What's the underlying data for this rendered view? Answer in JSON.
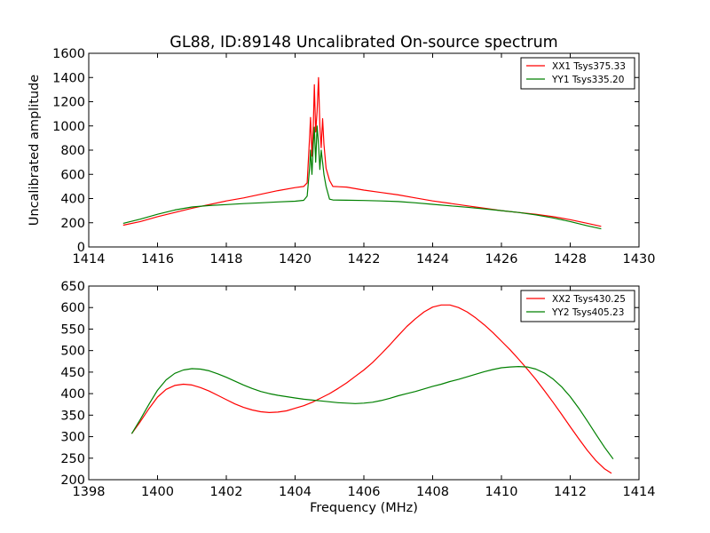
{
  "page": {
    "background": "#ffffff"
  },
  "colors": {
    "red": "#ff0000",
    "green": "#008000",
    "axis": "#000000"
  },
  "chart_data": [
    {
      "type": "line",
      "title": "GL88, ID:89148 Uncalibrated On-source spectrum",
      "xlabel": "",
      "ylabel": "Uncalibrated amplitude",
      "xlim": [
        1414,
        1430
      ],
      "ylim": [
        0,
        1600
      ],
      "xticks": [
        1414,
        1416,
        1418,
        1420,
        1422,
        1424,
        1426,
        1428,
        1430
      ],
      "yticks": [
        0,
        200,
        400,
        600,
        800,
        1000,
        1200,
        1400,
        1600
      ],
      "grid": false,
      "legend_position": "top-right",
      "series": [
        {
          "name": "XX1 Tsys375.33",
          "color": "#ff0000",
          "points": [
            [
              1415.0,
              180
            ],
            [
              1415.5,
              210
            ],
            [
              1416.0,
              250
            ],
            [
              1416.5,
              285
            ],
            [
              1417.0,
              320
            ],
            [
              1417.5,
              350
            ],
            [
              1418.0,
              380
            ],
            [
              1418.5,
              405
            ],
            [
              1419.0,
              435
            ],
            [
              1419.5,
              465
            ],
            [
              1420.0,
              490
            ],
            [
              1420.25,
              500
            ],
            [
              1420.35,
              530
            ],
            [
              1420.42,
              900
            ],
            [
              1420.45,
              1070
            ],
            [
              1420.49,
              750
            ],
            [
              1420.53,
              1000
            ],
            [
              1420.56,
              1340
            ],
            [
              1420.6,
              950
            ],
            [
              1420.64,
              1120
            ],
            [
              1420.68,
              1400
            ],
            [
              1420.72,
              1000
            ],
            [
              1420.76,
              820
            ],
            [
              1420.8,
              1060
            ],
            [
              1420.84,
              850
            ],
            [
              1420.9,
              650
            ],
            [
              1421.0,
              550
            ],
            [
              1421.1,
              500
            ],
            [
              1421.5,
              495
            ],
            [
              1422.0,
              470
            ],
            [
              1422.5,
              450
            ],
            [
              1423.0,
              430
            ],
            [
              1423.5,
              405
            ],
            [
              1424.0,
              380
            ],
            [
              1424.5,
              360
            ],
            [
              1425.0,
              340
            ],
            [
              1425.5,
              320
            ],
            [
              1426.0,
              300
            ],
            [
              1426.5,
              285
            ],
            [
              1427.0,
              270
            ],
            [
              1427.5,
              250
            ],
            [
              1428.0,
              225
            ],
            [
              1428.5,
              195
            ],
            [
              1428.9,
              170
            ]
          ]
        },
        {
          "name": "YY1 Tsys335.20",
          "color": "#008000",
          "points": [
            [
              1415.0,
              195
            ],
            [
              1415.5,
              230
            ],
            [
              1416.0,
              270
            ],
            [
              1416.5,
              305
            ],
            [
              1417.0,
              330
            ],
            [
              1417.5,
              342
            ],
            [
              1418.0,
              350
            ],
            [
              1418.5,
              358
            ],
            [
              1419.0,
              365
            ],
            [
              1419.5,
              372
            ],
            [
              1420.0,
              378
            ],
            [
              1420.25,
              385
            ],
            [
              1420.35,
              420
            ],
            [
              1420.42,
              650
            ],
            [
              1420.45,
              800
            ],
            [
              1420.49,
              600
            ],
            [
              1420.53,
              850
            ],
            [
              1420.56,
              990
            ],
            [
              1420.6,
              700
            ],
            [
              1420.64,
              1000
            ],
            [
              1420.68,
              850
            ],
            [
              1420.72,
              640
            ],
            [
              1420.76,
              800
            ],
            [
              1420.8,
              700
            ],
            [
              1420.84,
              600
            ],
            [
              1420.9,
              500
            ],
            [
              1421.0,
              395
            ],
            [
              1421.1,
              388
            ],
            [
              1421.5,
              386
            ],
            [
              1422.0,
              384
            ],
            [
              1422.5,
              380
            ],
            [
              1423.0,
              375
            ],
            [
              1423.5,
              365
            ],
            [
              1424.0,
              352
            ],
            [
              1424.5,
              340
            ],
            [
              1425.0,
              328
            ],
            [
              1425.5,
              315
            ],
            [
              1426.0,
              300
            ],
            [
              1426.5,
              285
            ],
            [
              1427.0,
              265
            ],
            [
              1427.5,
              240
            ],
            [
              1428.0,
              210
            ],
            [
              1428.5,
              175
            ],
            [
              1428.9,
              150
            ]
          ]
        }
      ]
    },
    {
      "type": "line",
      "title": "",
      "xlabel": "Frequency (MHz)",
      "ylabel": "",
      "xlim": [
        1398,
        1414
      ],
      "ylim": [
        200,
        650
      ],
      "xticks": [
        1398,
        1400,
        1402,
        1404,
        1406,
        1408,
        1410,
        1412,
        1414
      ],
      "yticks": [
        200,
        250,
        300,
        350,
        400,
        450,
        500,
        550,
        600,
        650
      ],
      "grid": false,
      "legend_position": "top-right",
      "series": [
        {
          "name": "XX2 Tsys430.25",
          "color": "#ff0000",
          "points": [
            [
              1399.25,
              307
            ],
            [
              1399.5,
              335
            ],
            [
              1399.75,
              365
            ],
            [
              1400.0,
              392
            ],
            [
              1400.25,
              410
            ],
            [
              1400.5,
              419
            ],
            [
              1400.75,
              422
            ],
            [
              1401.0,
              420
            ],
            [
              1401.25,
              414
            ],
            [
              1401.5,
              406
            ],
            [
              1401.75,
              396
            ],
            [
              1402.0,
              386
            ],
            [
              1402.25,
              376
            ],
            [
              1402.5,
              368
            ],
            [
              1402.75,
              362
            ],
            [
              1403.0,
              358
            ],
            [
              1403.25,
              356
            ],
            [
              1403.5,
              357
            ],
            [
              1403.75,
              360
            ],
            [
              1404.0,
              366
            ],
            [
              1404.25,
              372
            ],
            [
              1404.5,
              380
            ],
            [
              1404.75,
              390
            ],
            [
              1405.0,
              400
            ],
            [
              1405.25,
              412
            ],
            [
              1405.5,
              425
            ],
            [
              1405.75,
              440
            ],
            [
              1406.0,
              455
            ],
            [
              1406.25,
              472
            ],
            [
              1406.5,
              492
            ],
            [
              1406.75,
              513
            ],
            [
              1407.0,
              535
            ],
            [
              1407.25,
              556
            ],
            [
              1407.5,
              574
            ],
            [
              1407.75,
              590
            ],
            [
              1408.0,
              601
            ],
            [
              1408.25,
              606
            ],
            [
              1408.5,
              606
            ],
            [
              1408.75,
              600
            ],
            [
              1409.0,
              590
            ],
            [
              1409.25,
              576
            ],
            [
              1409.5,
              560
            ],
            [
              1409.75,
              542
            ],
            [
              1410.0,
              522
            ],
            [
              1410.25,
              502
            ],
            [
              1410.5,
              480
            ],
            [
              1410.75,
              457
            ],
            [
              1411.0,
              433
            ],
            [
              1411.25,
              407
            ],
            [
              1411.5,
              380
            ],
            [
              1411.75,
              352
            ],
            [
              1412.0,
              323
            ],
            [
              1412.25,
              295
            ],
            [
              1412.5,
              268
            ],
            [
              1412.75,
              244
            ],
            [
              1413.0,
              225
            ],
            [
              1413.2,
              215
            ]
          ]
        },
        {
          "name": "YY2 Tsys405.23",
          "color": "#008000",
          "points": [
            [
              1399.25,
              307
            ],
            [
              1399.5,
              340
            ],
            [
              1399.75,
              375
            ],
            [
              1400.0,
              408
            ],
            [
              1400.25,
              432
            ],
            [
              1400.5,
              447
            ],
            [
              1400.75,
              455
            ],
            [
              1401.0,
              458
            ],
            [
              1401.25,
              457
            ],
            [
              1401.5,
              453
            ],
            [
              1401.75,
              446
            ],
            [
              1402.0,
              438
            ],
            [
              1402.25,
              429
            ],
            [
              1402.5,
              420
            ],
            [
              1402.75,
              412
            ],
            [
              1403.0,
              405
            ],
            [
              1403.25,
              400
            ],
            [
              1403.5,
              396
            ],
            [
              1403.75,
              393
            ],
            [
              1404.0,
              390
            ],
            [
              1404.25,
              387
            ],
            [
              1404.5,
              385
            ],
            [
              1404.75,
              383
            ],
            [
              1405.0,
              381
            ],
            [
              1405.25,
              379
            ],
            [
              1405.5,
              378
            ],
            [
              1405.75,
              377
            ],
            [
              1406.0,
              378
            ],
            [
              1406.25,
              380
            ],
            [
              1406.5,
              384
            ],
            [
              1406.75,
              389
            ],
            [
              1407.0,
              395
            ],
            [
              1407.25,
              400
            ],
            [
              1407.5,
              405
            ],
            [
              1407.75,
              411
            ],
            [
              1408.0,
              417
            ],
            [
              1408.25,
              422
            ],
            [
              1408.5,
              428
            ],
            [
              1408.75,
              433
            ],
            [
              1409.0,
              439
            ],
            [
              1409.25,
              445
            ],
            [
              1409.5,
              451
            ],
            [
              1409.75,
              456
            ],
            [
              1410.0,
              460
            ],
            [
              1410.25,
              462
            ],
            [
              1410.5,
              463
            ],
            [
              1410.75,
              462
            ],
            [
              1411.0,
              457
            ],
            [
              1411.25,
              448
            ],
            [
              1411.5,
              434
            ],
            [
              1411.75,
              416
            ],
            [
              1412.0,
              393
            ],
            [
              1412.25,
              366
            ],
            [
              1412.5,
              336
            ],
            [
              1412.75,
              305
            ],
            [
              1413.0,
              275
            ],
            [
              1413.25,
              248
            ]
          ]
        }
      ]
    }
  ]
}
